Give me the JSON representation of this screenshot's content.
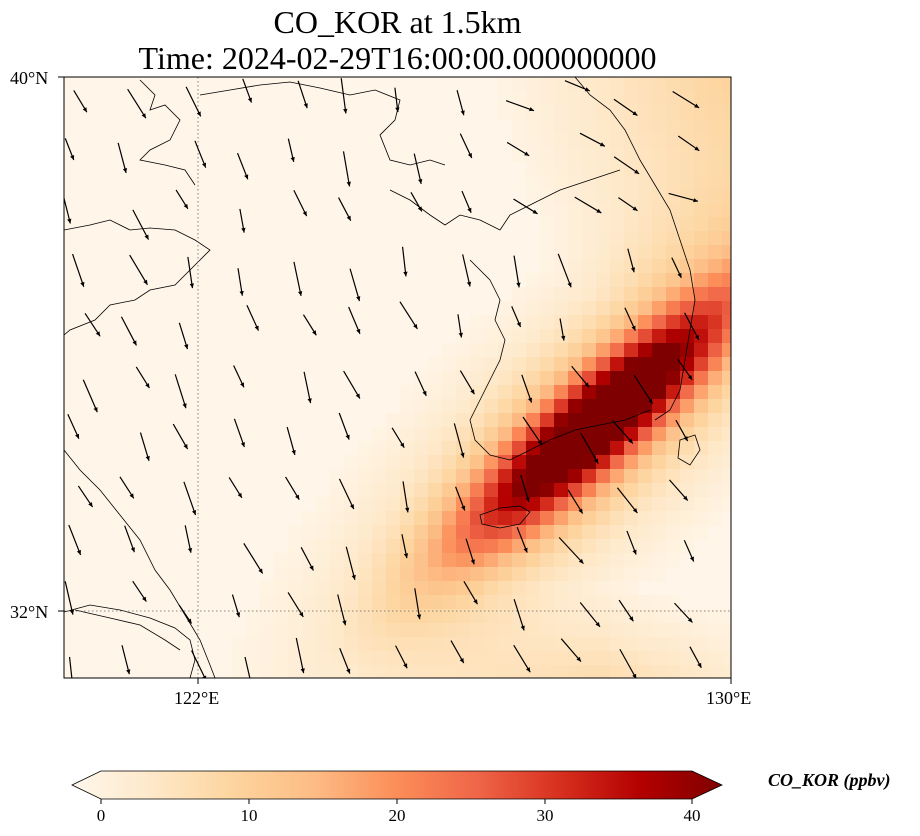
{
  "title": {
    "line1": "CO_KOR at 1.5km",
    "line2": "Time: 2024-02-29T16:00:00.000000000"
  },
  "map": {
    "lon_range": [
      120,
      130
    ],
    "lat_range": [
      31,
      40
    ],
    "lat_ticks": [
      {
        "value": 40,
        "label": "40°N"
      },
      {
        "value": 32,
        "label": "32°N"
      }
    ],
    "lon_ticks": [
      {
        "value": 122,
        "label": "122°E"
      },
      {
        "value": 130,
        "label": "130°E"
      }
    ],
    "gridlines": "dotted",
    "coastlines": true,
    "wind_vectors": true,
    "plume_peak_ppbv": 40
  },
  "colorbar": {
    "label": "CO_KOR (ppbv)",
    "colormap": "OrRd",
    "min": 0,
    "max": 40,
    "extend": "both",
    "ticks": [
      "0",
      "10",
      "20",
      "30",
      "40"
    ],
    "colors": [
      "#fff7ec",
      "#fee8c8",
      "#fdd49e",
      "#fdbb84",
      "#fc8d59",
      "#ef6548",
      "#d7301f",
      "#b30000",
      "#7f0000"
    ]
  }
}
